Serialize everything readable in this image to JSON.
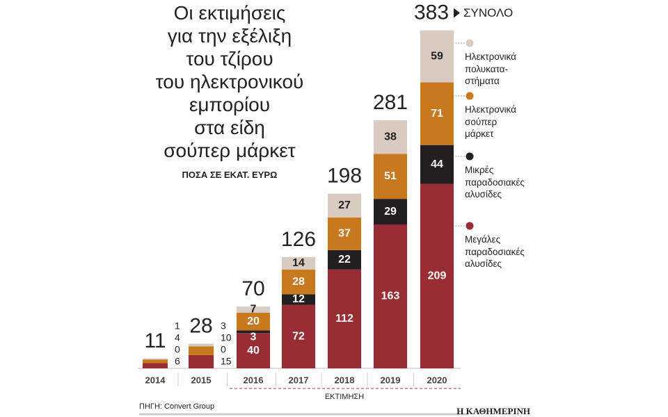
{
  "chart_data": {
    "type": "stacked-bar",
    "title": "Οι εκτιμήσεις\nγια την εξέλιξη\nτου τζίρου\nτου ηλεκτρονικού\nεμπορίου\nστα είδη\nσούπερ μάρκετ",
    "subtitle": "ΠΟΣΑ ΣΕ ΕΚΑΤ. ΕΥΡΩ",
    "categories": [
      "2014",
      "2015",
      "2016",
      "2017",
      "2018",
      "2019",
      "2020"
    ],
    "series": [
      {
        "name": "Μεγάλες\nπαραδοσιακές\nαλυσίδες",
        "color": "#992d34",
        "values": [
          6,
          15,
          40,
          72,
          112,
          163,
          209
        ]
      },
      {
        "name": "Μικρές\nπαραδοσιακές\nαλυσίδες",
        "color": "#231f20",
        "values": [
          0,
          0,
          3,
          12,
          22,
          29,
          44
        ]
      },
      {
        "name": "Ηλεκτρονικά\nσούπερ\nμάρκετ",
        "color": "#c8791e",
        "values": [
          4,
          10,
          20,
          28,
          37,
          51,
          71
        ]
      },
      {
        "name": "Ηλεκτρονικά\nπολυκατα-\nστήματα",
        "color": "#d9cbbf",
        "values": [
          1,
          3,
          7,
          14,
          27,
          38,
          59
        ]
      }
    ],
    "totals": [
      11,
      28,
      70,
      126,
      198,
      281,
      383
    ],
    "total_label": "ΣΥΝΟΛΟ",
    "estimate_label": "ΕΚΤΙΜΗΣΗ",
    "source": "ΠΗΓΗ: Convert Group",
    "brand": "Η ΚΑΘΗΜΕΡΙΝΗ"
  }
}
